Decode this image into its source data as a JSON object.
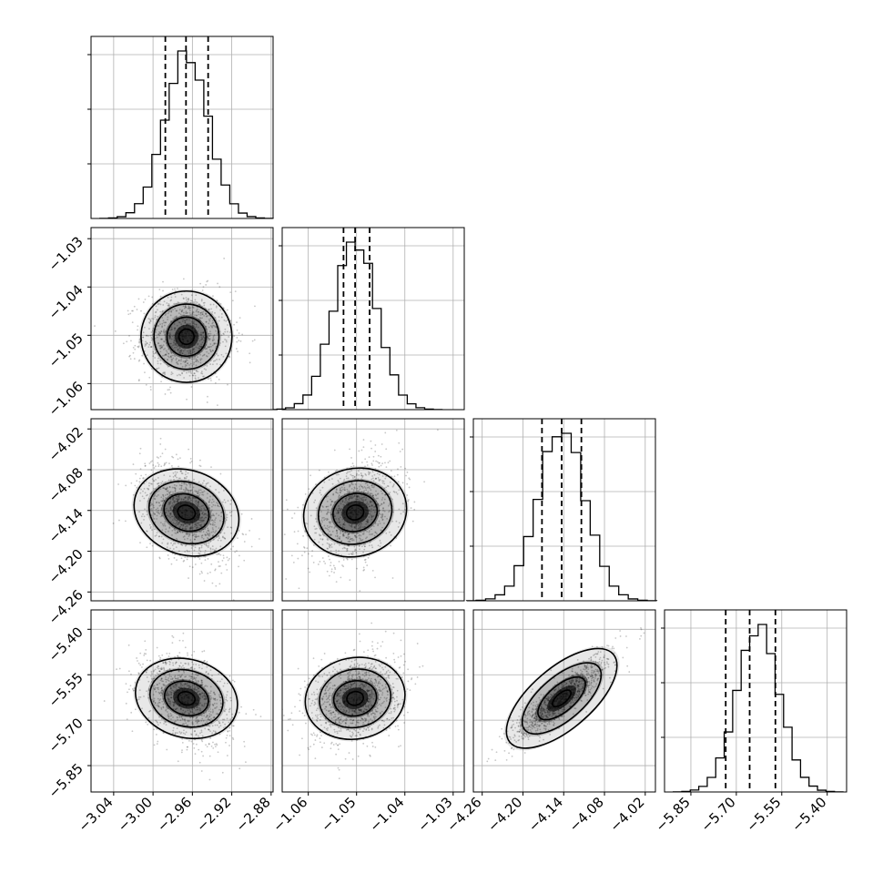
{
  "chart_data": {
    "type": "corner",
    "parameters": [
      {
        "index": 0,
        "lim": [
          -3.063,
          -2.878
        ],
        "ticks": [
          -3.04,
          -3.0,
          -2.96,
          -2.92,
          -2.88
        ],
        "tick_labels": [
          "−3.04",
          "−3.00",
          "−2.96",
          "−2.92",
          "−2.88"
        ],
        "mean": -2.966,
        "sd": 0.022,
        "quantiles": [
          -2.9875,
          -2.9665,
          -2.944
        ]
      },
      {
        "index": 1,
        "lim": [
          -1.0654,
          -1.0277
        ],
        "ticks": [
          -1.06,
          -1.05,
          -1.04,
          -1.03
        ],
        "tick_labels": [
          "−1.06",
          "−1.05",
          "−1.04",
          "−1.03"
        ],
        "mean": -1.0503,
        "sd": 0.0045,
        "quantiles": [
          -1.0527,
          -1.0503,
          -1.0473
        ]
      },
      {
        "index": 2,
        "lim": [
          -4.273,
          -4.005
        ],
        "ticks": [
          -4.26,
          -4.2,
          -4.14,
          -4.08,
          -4.02
        ],
        "tick_labels": [
          "−4.26",
          "−4.20",
          "−4.14",
          "−4.08",
          "−4.02"
        ],
        "mean": -4.143,
        "sd": 0.035,
        "quantiles": [
          -4.172,
          -4.143,
          -4.114
        ]
      },
      {
        "index": 3,
        "lim": [
          -5.937,
          -5.336
        ],
        "ticks": [
          -5.85,
          -5.7,
          -5.55,
          -5.4
        ],
        "tick_labels": [
          "−5.85",
          "−5.70",
          "−5.55",
          "−5.40"
        ],
        "mean": -5.628,
        "sd": 0.07,
        "quantiles": [
          -5.735,
          -5.656,
          -5.571
        ]
      }
    ],
    "correlations": [
      {
        "i": 1,
        "j": 0,
        "rho": 0.0
      },
      {
        "i": 2,
        "j": 0,
        "rho": -0.45
      },
      {
        "i": 2,
        "j": 1,
        "rho": 0.35
      },
      {
        "i": 3,
        "j": 0,
        "rho": -0.35
      },
      {
        "i": 3,
        "j": 1,
        "rho": 0.25
      },
      {
        "i": 3,
        "j": 2,
        "rho": 0.9
      }
    ],
    "histogram": {
      "bins": 20
    },
    "grid": true,
    "colors": {
      "ink": "#000000",
      "grid": "#b0b0b0"
    }
  }
}
